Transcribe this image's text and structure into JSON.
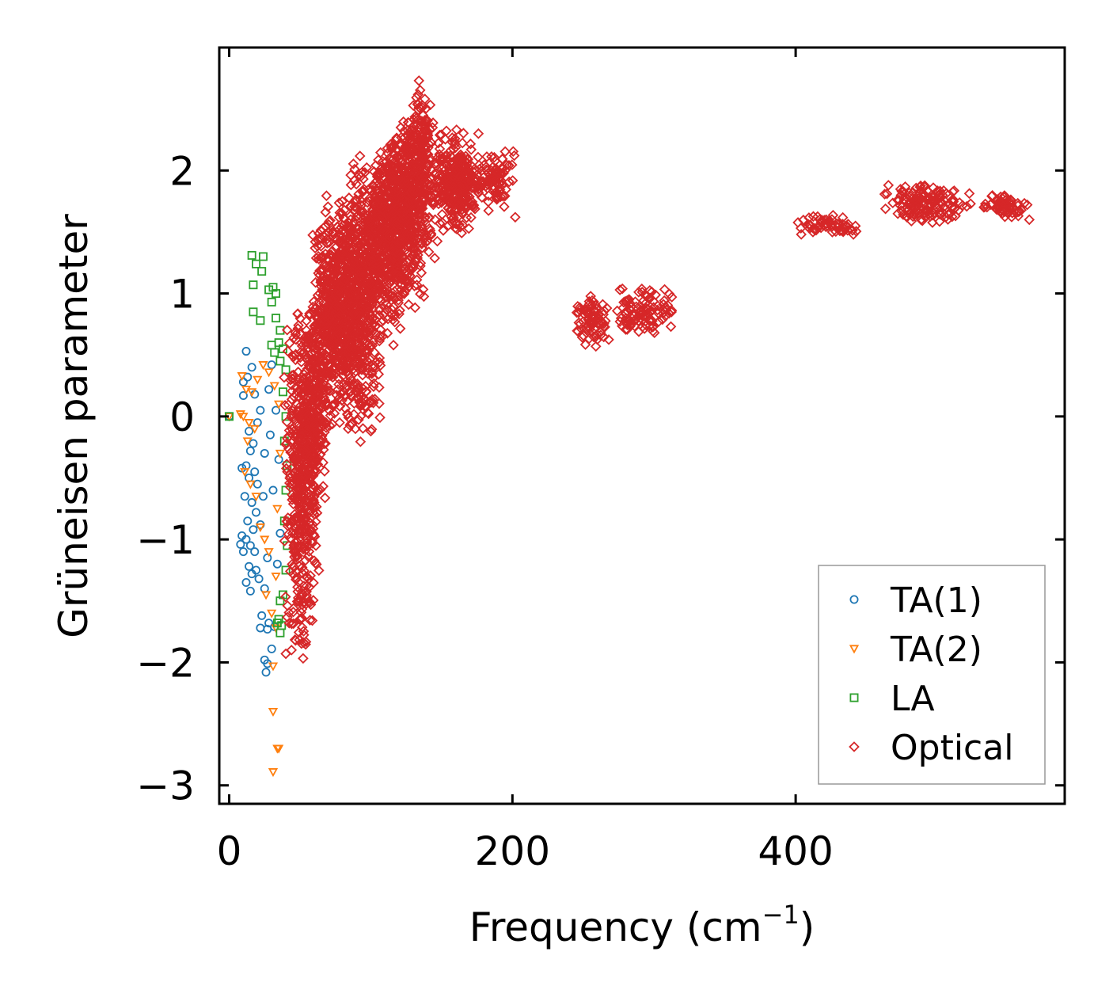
{
  "chart_data": {
    "type": "scatter",
    "title": "",
    "xlabel": "Frequency (cm",
    "xlabel_sup": "−1",
    "xlabel_close": ")",
    "ylabel": "Grüneisen parameter",
    "xlim": [
      -7,
      590
    ],
    "ylim": [
      -3.15,
      3.0
    ],
    "xticks": [
      0,
      200,
      400
    ],
    "xtick_labels": [
      "0",
      "200",
      "400"
    ],
    "yticks": [
      -3,
      -2,
      -1,
      0,
      1,
      2
    ],
    "ytick_labels": [
      "−3",
      "−2",
      "−1",
      "0",
      "1",
      "2"
    ],
    "grid": false,
    "legend_position": "lower-right",
    "series": [
      {
        "name": "TA(1)",
        "marker": "circle",
        "color": "#1f77b4",
        "points": [
          [
            0,
            0
          ],
          [
            12,
            0.53
          ],
          [
            16,
            0.4
          ],
          [
            10,
            0.28
          ],
          [
            13,
            0.32
          ],
          [
            18,
            0.18
          ],
          [
            10,
            0.17
          ],
          [
            22,
            0.05
          ],
          [
            20,
            -0.05
          ],
          [
            14,
            -0.12
          ],
          [
            17,
            -0.22
          ],
          [
            25,
            -0.3
          ],
          [
            15,
            -0.28
          ],
          [
            12,
            -0.4
          ],
          [
            9,
            -0.42
          ],
          [
            18,
            -0.45
          ],
          [
            14,
            -0.5
          ],
          [
            20,
            -0.55
          ],
          [
            11,
            -0.65
          ],
          [
            16,
            -0.7
          ],
          [
            19,
            -0.78
          ],
          [
            13,
            -0.85
          ],
          [
            22,
            -0.88
          ],
          [
            17,
            -0.92
          ],
          [
            9,
            -0.97
          ],
          [
            8,
            -1.04
          ],
          [
            12,
            -1.0
          ],
          [
            15,
            -1.05
          ],
          [
            18,
            -1.1
          ],
          [
            10,
            -1.1
          ],
          [
            14,
            -1.22
          ],
          [
            16,
            -1.28
          ],
          [
            19,
            -1.25
          ],
          [
            21,
            -1.32
          ],
          [
            12,
            -1.35
          ],
          [
            15,
            -1.42
          ],
          [
            25,
            -1.4
          ],
          [
            23,
            -1.62
          ],
          [
            22,
            -1.72
          ],
          [
            27,
            -1.73
          ],
          [
            25,
            -1.98
          ],
          [
            27,
            -2.01
          ],
          [
            26,
            -2.08
          ],
          [
            30,
            -1.89
          ],
          [
            32,
            -1.71
          ],
          [
            28,
            -1.68
          ],
          [
            30,
            0.42
          ],
          [
            28,
            0.22
          ],
          [
            33,
            0.05
          ],
          [
            35,
            -0.35
          ],
          [
            31,
            -0.6
          ],
          [
            36,
            -0.95
          ],
          [
            34,
            -1.2
          ],
          [
            29,
            -0.15
          ],
          [
            24,
            -0.65
          ],
          [
            27,
            -1.15
          ]
        ]
      },
      {
        "name": "TA(2)",
        "marker": "triangle-down",
        "color": "#ff7f0e",
        "points": [
          [
            0,
            0
          ],
          [
            9,
            0.33
          ],
          [
            12,
            0.22
          ],
          [
            20,
            0.3
          ],
          [
            16,
            0.2
          ],
          [
            10,
            0.0
          ],
          [
            14,
            -0.05
          ],
          [
            8,
            0.02
          ],
          [
            18,
            -0.1
          ],
          [
            13,
            -0.2
          ],
          [
            11,
            -0.45
          ],
          [
            15,
            -0.55
          ],
          [
            19,
            -0.65
          ],
          [
            22,
            -0.9
          ],
          [
            25,
            -1.0
          ],
          [
            28,
            -1.1
          ],
          [
            26,
            -1.45
          ],
          [
            30,
            -1.6
          ],
          [
            33,
            -1.72
          ],
          [
            31,
            -2.03
          ],
          [
            31,
            -2.4
          ],
          [
            34,
            -2.7
          ],
          [
            35,
            -2.7
          ],
          [
            31,
            -2.89
          ],
          [
            24,
            0.42
          ],
          [
            28,
            0.36
          ],
          [
            32,
            0.25
          ],
          [
            35,
            0.1
          ],
          [
            36,
            -0.3
          ],
          [
            34,
            -0.75
          ],
          [
            33,
            -1.3
          ]
        ]
      },
      {
        "name": "LA",
        "marker": "square",
        "color": "#2ca02c",
        "points": [
          [
            0,
            0
          ],
          [
            16,
            1.31
          ],
          [
            24,
            1.3
          ],
          [
            19,
            1.24
          ],
          [
            23,
            1.18
          ],
          [
            17,
            1.07
          ],
          [
            28,
            1.03
          ],
          [
            31,
            1.05
          ],
          [
            33,
            1.0
          ],
          [
            30,
            0.93
          ],
          [
            17,
            0.85
          ],
          [
            22,
            0.78
          ],
          [
            33,
            0.8
          ],
          [
            36,
            0.7
          ],
          [
            30,
            0.58
          ],
          [
            35,
            0.6
          ],
          [
            38,
            0.55
          ],
          [
            32,
            0.52
          ],
          [
            36,
            0.45
          ],
          [
            40,
            0.38
          ],
          [
            38,
            0.2
          ],
          [
            40,
            0.0
          ],
          [
            39,
            -0.2
          ],
          [
            41,
            -0.4
          ],
          [
            40,
            -0.6
          ],
          [
            39,
            -0.85
          ],
          [
            41,
            -1.05
          ],
          [
            40,
            -1.25
          ],
          [
            38,
            -1.45
          ],
          [
            36,
            -1.5
          ],
          [
            35,
            -1.65
          ],
          [
            37,
            -1.7
          ],
          [
            36,
            -1.76
          ],
          [
            34,
            -1.68
          ]
        ]
      },
      {
        "name": "Optical",
        "marker": "diamond",
        "color": "#d62728",
        "clusters": [
          {
            "x": [
              38,
              65
            ],
            "y": [
              -2.0,
              1.0
            ]
          },
          {
            "x": [
              48,
              70
            ],
            "y": [
              -0.75,
              0.55
            ]
          },
          {
            "x": [
              55,
              85
            ],
            "y": [
              -0.2,
              1.6
            ]
          },
          {
            "x": [
              62,
              95
            ],
            "y": [
              0.3,
              1.85
            ]
          },
          {
            "x": [
              75,
              110
            ],
            "y": [
              -0.25,
              2.0
            ]
          },
          {
            "x": [
              85,
              125
            ],
            "y": [
              0.6,
              2.2
            ]
          },
          {
            "x": [
              100,
              140
            ],
            "y": [
              0.8,
              2.3
            ]
          },
          {
            "x": [
              110,
              150
            ],
            "y": [
              1.2,
              2.5
            ]
          },
          {
            "x": [
              125,
              145
            ],
            "y": [
              1.8,
              2.72
            ]
          },
          {
            "x": [
              140,
              175
            ],
            "y": [
              1.45,
              2.35
            ]
          },
          {
            "x": [
              150,
              180
            ],
            "y": [
              1.55,
              2.2
            ]
          },
          {
            "x": [
              175,
              202
            ],
            "y": [
              1.65,
              2.2
            ]
          },
          {
            "x": [
              242,
              270
            ],
            "y": [
              0.55,
              1.0
            ]
          },
          {
            "x": [
              272,
              315
            ],
            "y": [
              0.65,
              1.05
            ]
          },
          {
            "x": [
              400,
              448
            ],
            "y": [
              1.45,
              1.66
            ]
          },
          {
            "x": [
              460,
              525
            ],
            "y": [
              1.55,
              1.92
            ]
          },
          {
            "x": [
              530,
              565
            ],
            "y": [
              1.6,
              1.82
            ]
          }
        ],
        "outliers": [
          [
            68,
            -0.22
          ],
          [
            78,
            -0.05
          ],
          [
            84,
            -0.1
          ],
          [
            100,
            -0.12
          ],
          [
            116,
            0.58
          ],
          [
            120,
            0.98
          ],
          [
            134,
            2.73
          ],
          [
            176,
            2.3
          ],
          [
            48,
            -1.02
          ],
          [
            44,
            -1.9
          ],
          [
            40,
            -1.93
          ],
          [
            50,
            -0.95
          ],
          [
            60,
            -0.7
          ],
          [
            202,
            1.62
          ],
          [
            565,
            1.6
          ]
        ]
      }
    ]
  }
}
